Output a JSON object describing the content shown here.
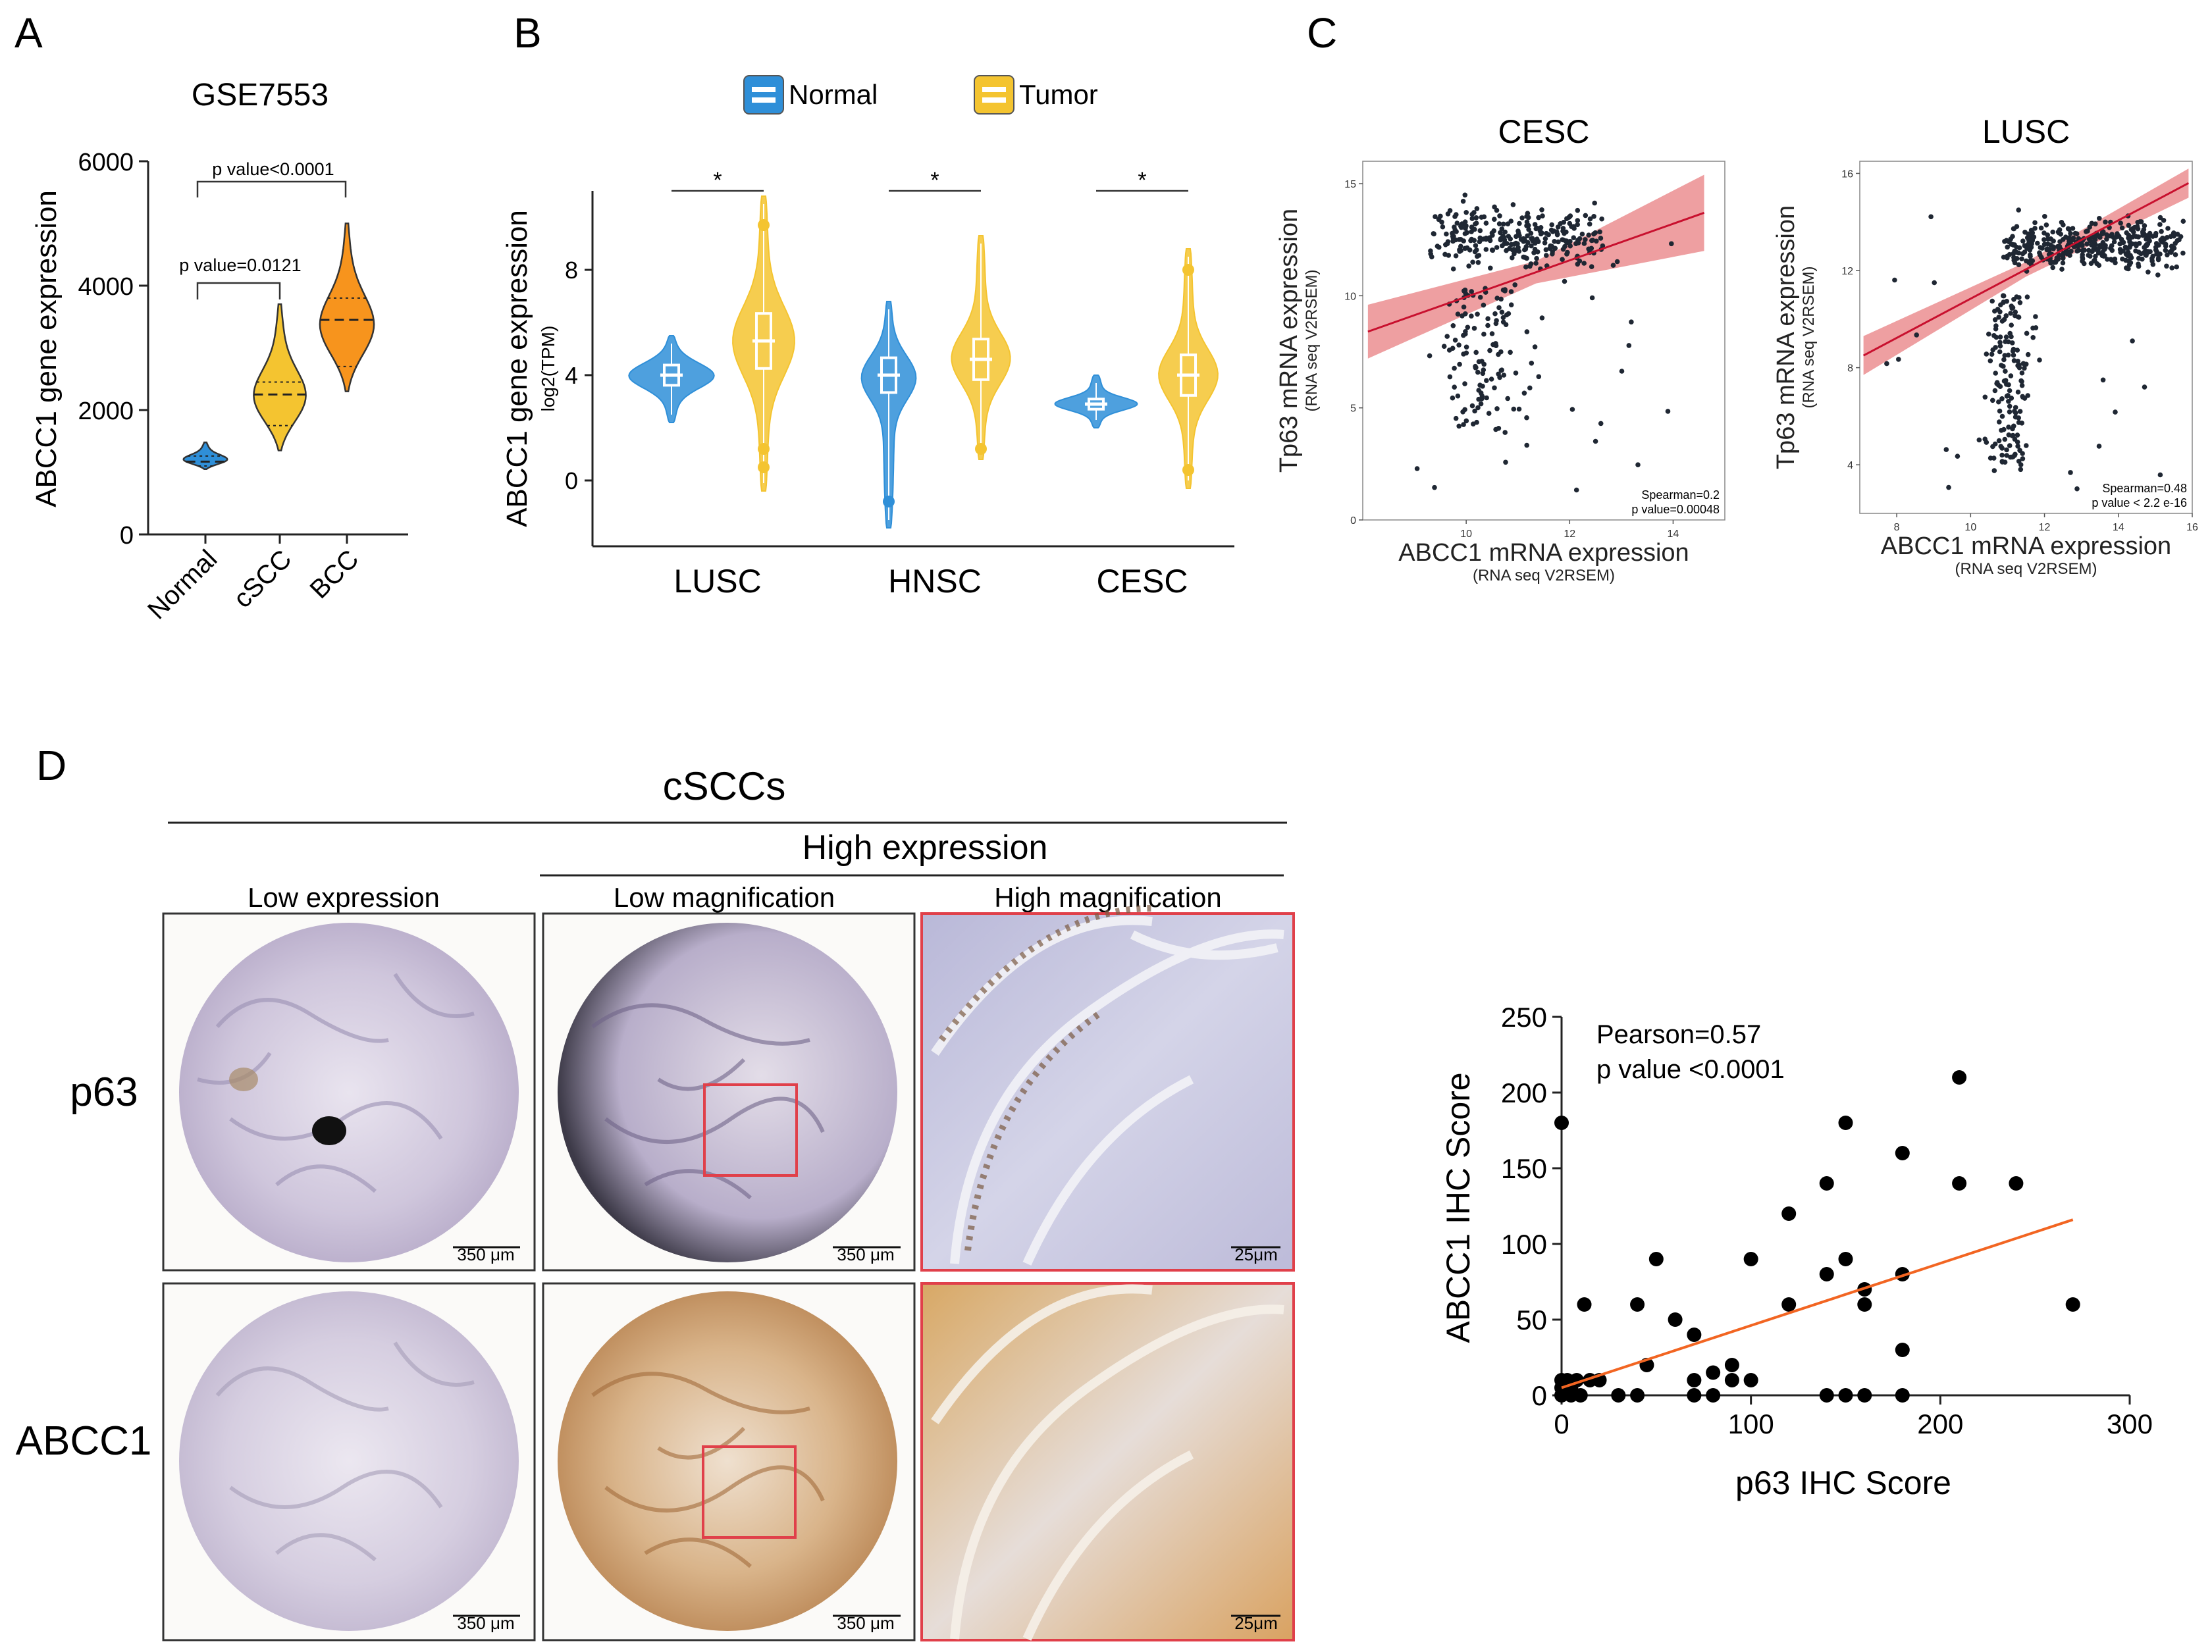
{
  "panels": {
    "a": "A",
    "b": "B",
    "c": "C",
    "d": "D"
  },
  "colors": {
    "normal": "#2f8fd8",
    "scc": "#f4c430",
    "bcc": "#f7941d",
    "tumor": "#f4c430",
    "reg_band": "#e56b6f",
    "reg_line": "#c8102e",
    "orange_line": "#f26522",
    "box_red": "#e0404a"
  },
  "chart_data": [
    {
      "id": "A",
      "type": "violin",
      "title": "GSE7553",
      "ylabel": "ABCC1 gene expression",
      "categories": [
        "Normal",
        "cSCC",
        "BCC"
      ],
      "ylim": [
        0,
        6000
      ],
      "yticks": [
        0,
        2000,
        4000,
        6000
      ],
      "series": [
        {
          "name": "Normal",
          "min": 1050,
          "q1": 1100,
          "median": 1170,
          "q3": 1260,
          "max": 1480
        },
        {
          "name": "cSCC",
          "min": 1350,
          "q1": 1750,
          "median": 2250,
          "q3": 2450,
          "max": 3700
        },
        {
          "name": "BCC",
          "min": 2300,
          "q1": 2700,
          "median": 3450,
          "q3": 3800,
          "max": 5000
        }
      ],
      "annotations": [
        "p value=0.0121",
        "p value<0.0001"
      ]
    },
    {
      "id": "B",
      "type": "violin",
      "ylabel": "ABCC1 gene expression",
      "ylabel_sub": "log2(TPM)",
      "categories": [
        "LUSC",
        "HNSC",
        "CESC"
      ],
      "legend": [
        "Normal",
        "Tumor"
      ],
      "ylim": [
        -2.5,
        11
      ],
      "yticks": [
        0,
        4,
        8
      ],
      "series": [
        {
          "name": "Normal",
          "values_median": [
            4.0,
            3.7,
            2.9
          ]
        },
        {
          "name": "Tumor",
          "values_median": [
            5.3,
            4.5,
            4.0
          ]
        }
      ],
      "significance": [
        "*",
        "*",
        "*"
      ]
    },
    {
      "id": "C1",
      "type": "scatter",
      "title": "CESC",
      "xlabel": "ABCC1 mRNA expression",
      "xlabel_sub": "(RNA seq V2RSEM)",
      "ylabel": "Tp63 mRNA expression",
      "ylabel_sub": "(RNA seq V2RSEM)",
      "xlim": [
        8,
        15
      ],
      "ylim": [
        0,
        16
      ],
      "xticks": [
        10,
        12,
        14
      ],
      "yticks": [
        0,
        5,
        10,
        15
      ],
      "stats": [
        "Spearman=0.2",
        "p value=0.00048"
      ],
      "fit": {
        "x": [
          8.1,
          14.6
        ],
        "y": [
          8.4,
          13.7
        ]
      }
    },
    {
      "id": "C2",
      "type": "scatter",
      "title": "LUSC",
      "xlabel": "ABCC1 mRNA expression",
      "xlabel_sub": "(RNA seq V2RSEM)",
      "ylabel": "Tp63 mRNA expression",
      "ylabel_sub": "(RNA seq V2RSEM)",
      "xlim": [
        7,
        16
      ],
      "ylim": [
        2,
        16.5
      ],
      "xticks": [
        8,
        10,
        12,
        14,
        16
      ],
      "yticks": [
        4,
        8,
        12,
        16
      ],
      "stats": [
        "Spearman=0.48",
        "p value < 2.2 e-16"
      ],
      "fit": {
        "x": [
          7.1,
          15.9
        ],
        "y": [
          8.5,
          15.6
        ]
      }
    },
    {
      "id": "D",
      "type": "scatter",
      "xlabel": "p63 IHC Score",
      "ylabel": "ABCC1 IHC Score",
      "xlim": [
        0,
        300
      ],
      "ylim": [
        0,
        250
      ],
      "xticks": [
        0,
        100,
        200,
        300
      ],
      "yticks": [
        0,
        50,
        100,
        150,
        200,
        250
      ],
      "stats": [
        "Pearson=0.57",
        "p value <0.0001"
      ],
      "points": [
        [
          0,
          180
        ],
        [
          0,
          10
        ],
        [
          0,
          5
        ],
        [
          0,
          0
        ],
        [
          3,
          10
        ],
        [
          5,
          0
        ],
        [
          5,
          5
        ],
        [
          8,
          10
        ],
        [
          10,
          0
        ],
        [
          12,
          60
        ],
        [
          15,
          10
        ],
        [
          20,
          10
        ],
        [
          30,
          0
        ],
        [
          40,
          60
        ],
        [
          40,
          0
        ],
        [
          45,
          20
        ],
        [
          50,
          90
        ],
        [
          60,
          50
        ],
        [
          70,
          40
        ],
        [
          70,
          10
        ],
        [
          70,
          0
        ],
        [
          80,
          15
        ],
        [
          80,
          0
        ],
        [
          90,
          20
        ],
        [
          90,
          10
        ],
        [
          100,
          10
        ],
        [
          100,
          90
        ],
        [
          120,
          120
        ],
        [
          120,
          60
        ],
        [
          140,
          80
        ],
        [
          140,
          140
        ],
        [
          140,
          0
        ],
        [
          150,
          90
        ],
        [
          150,
          180
        ],
        [
          150,
          0
        ],
        [
          160,
          70
        ],
        [
          160,
          60
        ],
        [
          160,
          0
        ],
        [
          180,
          160
        ],
        [
          180,
          80
        ],
        [
          180,
          30
        ],
        [
          180,
          0
        ],
        [
          210,
          210
        ],
        [
          210,
          140
        ],
        [
          240,
          140
        ],
        [
          270,
          60
        ]
      ],
      "fit": {
        "x": [
          0,
          270
        ],
        "y": [
          5,
          116
        ]
      }
    }
  ],
  "d": {
    "group_title": "cSCCs",
    "high_title": "High expression",
    "cols": [
      "Low expression",
      "Low magnification",
      "High magnification"
    ],
    "rows": [
      "p63",
      "ABCC1"
    ],
    "scales": [
      "350 μm",
      "350 μm",
      "25μm",
      "350 μm",
      "350 μm",
      "25μm"
    ]
  }
}
